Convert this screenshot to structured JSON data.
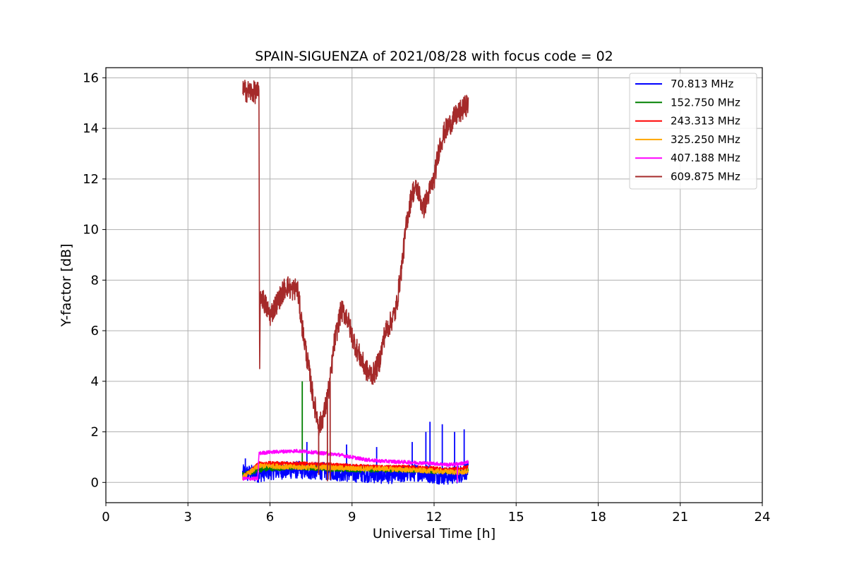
{
  "chart_data": {
    "type": "line",
    "title": "SPAIN-SIGUENZA of 2021/08/28 with focus code = 02",
    "xlabel": "Universal Time [h]",
    "ylabel": "Y-factor [dB]",
    "xlim": [
      0,
      24
    ],
    "ylim": [
      -0.8,
      16.4
    ],
    "xticks": [
      0,
      3,
      6,
      9,
      12,
      15,
      18,
      21,
      24
    ],
    "yticks": [
      0,
      2,
      4,
      6,
      8,
      10,
      12,
      14,
      16
    ],
    "grid": true,
    "legend_position": "top-right",
    "series": [
      {
        "name": " 70.813 MHz",
        "color": "#0000ff",
        "x": [
          5.0,
          5.6,
          6.0,
          7.0,
          7.5,
          8.0,
          8.5,
          9.0,
          9.5,
          10.0,
          10.5,
          11.0,
          11.5,
          12.0,
          12.5,
          13.0,
          13.25
        ],
        "y": [
          0.35,
          0.35,
          0.45,
          0.5,
          0.45,
          0.45,
          0.4,
          0.35,
          0.35,
          0.3,
          0.3,
          0.35,
          0.4,
          0.3,
          0.25,
          0.35,
          0.5
        ],
        "noise": 0.35,
        "spikes": [
          [
            5.1,
            0.95
          ],
          [
            7.35,
            1.6
          ],
          [
            8.8,
            1.5
          ],
          [
            9.9,
            1.4
          ],
          [
            11.2,
            1.6
          ],
          [
            11.7,
            2.0
          ],
          [
            11.85,
            2.4
          ],
          [
            12.3,
            2.3
          ],
          [
            12.75,
            2.0
          ],
          [
            13.1,
            2.1
          ]
        ]
      },
      {
        "name": "152.750 MHz",
        "color": "#008000",
        "x": [
          5.0,
          5.6,
          6.0,
          7.0,
          8.0,
          9.0,
          10.0,
          11.0,
          12.0,
          13.0,
          13.25
        ],
        "y": [
          0.3,
          0.5,
          0.55,
          0.6,
          0.55,
          0.5,
          0.5,
          0.5,
          0.45,
          0.45,
          0.5
        ],
        "noise": 0.1,
        "spikes": [
          [
            7.18,
            4.0
          ]
        ]
      },
      {
        "name": "243.313 MHz",
        "color": "#ff0000",
        "x": [
          5.0,
          5.6,
          6.0,
          7.0,
          8.0,
          9.0,
          10.0,
          11.0,
          12.0,
          12.5,
          13.0,
          13.25
        ],
        "y": [
          0.2,
          0.75,
          0.75,
          0.75,
          0.7,
          0.65,
          0.6,
          0.6,
          0.55,
          0.5,
          0.55,
          0.6
        ],
        "noise": 0.08,
        "spikes": []
      },
      {
        "name": "325.250 MHz",
        "color": "#ffa500",
        "x": [
          5.0,
          5.6,
          6.0,
          7.0,
          8.0,
          9.0,
          10.0,
          11.0,
          12.0,
          13.0,
          13.25
        ],
        "y": [
          0.2,
          0.65,
          0.65,
          0.6,
          0.6,
          0.55,
          0.55,
          0.5,
          0.45,
          0.4,
          0.45
        ],
        "noise": 0.1,
        "spikes": []
      },
      {
        "name": "407.188 MHz",
        "color": "#ff00ff",
        "x": [
          5.0,
          5.55,
          5.6,
          6.0,
          7.0,
          7.5,
          8.0,
          8.5,
          9.0,
          9.5,
          10.0,
          11.0,
          12.0,
          12.5,
          13.0,
          13.25
        ],
        "y": [
          0.15,
          0.15,
          1.15,
          1.2,
          1.25,
          1.2,
          1.15,
          1.1,
          1.0,
          0.9,
          0.85,
          0.8,
          0.75,
          0.7,
          0.75,
          0.8
        ],
        "noise": 0.07,
        "spikes": [
          [
            12.85,
            0.0
          ]
        ]
      },
      {
        "name": "609.875 MHz",
        "color": "#a52a2a",
        "x": [
          5.0,
          5.3,
          5.6,
          5.62,
          5.65,
          5.8,
          6.0,
          6.2,
          6.4,
          6.6,
          6.8,
          7.0,
          7.2,
          7.4,
          7.6,
          7.8,
          8.0,
          8.2,
          8.35,
          8.6,
          8.8,
          9.0,
          9.2,
          9.4,
          9.6,
          9.8,
          10.0,
          10.2,
          10.4,
          10.6,
          10.8,
          11.0,
          11.2,
          11.4,
          11.6,
          11.8,
          12.0,
          12.2,
          12.4,
          12.6,
          12.8,
          13.0,
          13.25
        ],
        "y": [
          15.5,
          15.45,
          15.4,
          3.9,
          7.5,
          7.1,
          6.6,
          7.0,
          7.4,
          7.8,
          7.6,
          7.7,
          6.0,
          4.6,
          3.2,
          2.2,
          2.8,
          4.0,
          5.5,
          6.8,
          6.6,
          5.8,
          5.2,
          4.7,
          4.3,
          4.3,
          4.8,
          5.9,
          6.3,
          6.8,
          8.4,
          10.3,
          11.5,
          11.6,
          10.8,
          11.4,
          12.0,
          13.3,
          13.9,
          14.2,
          14.5,
          14.7,
          15.0
        ],
        "noise": 0.45,
        "spikes": [
          [
            5.62,
            3.9
          ],
          [
            7.78,
            0.3
          ],
          [
            8.1,
            0.05
          ],
          [
            8.2,
            0.1
          ]
        ]
      }
    ]
  }
}
